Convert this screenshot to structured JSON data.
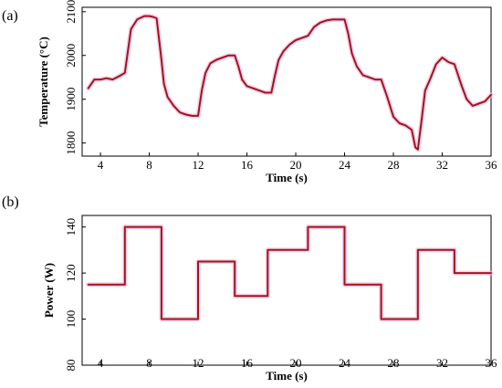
{
  "chart_data": [
    {
      "type": "line",
      "panel_label": "(a)",
      "xlabel": "Time (s)",
      "ylabel": "Temperature (°C)",
      "xlim": [
        2.5,
        36
      ],
      "ylim": [
        1770,
        2110
      ],
      "xticks": [
        4,
        8,
        12,
        16,
        20,
        24,
        28,
        32,
        36
      ],
      "yticks": [
        1800,
        1900,
        2000,
        2100
      ],
      "grid": false,
      "line_color": "#a0141e",
      "series": [
        {
          "x": [
            3.0,
            3.5,
            4.0,
            4.5,
            5.0,
            5.5,
            6.0,
            6.5,
            7.0,
            7.2,
            7.6,
            8.0,
            8.3,
            8.6,
            9.0,
            9.2,
            9.5,
            10.0,
            10.5,
            11.0,
            11.5,
            12.0,
            12.3,
            12.6,
            13.0,
            13.5,
            14.0,
            14.5,
            15.0,
            15.3,
            15.6,
            16.0,
            16.5,
            17.0,
            17.5,
            18.0,
            18.3,
            18.6,
            19.0,
            19.5,
            20.0,
            20.5,
            21.0,
            21.5,
            22.0,
            22.5,
            23.0,
            23.5,
            24.0,
            24.3,
            24.6,
            25.0,
            25.5,
            26.0,
            26.5,
            27.0,
            27.5,
            28.0,
            28.5,
            29.0,
            29.5,
            29.8,
            30.0,
            30.3,
            30.6,
            31.0,
            31.5,
            32.0,
            32.5,
            33.0,
            33.3,
            33.6,
            34.0,
            34.5,
            35.0,
            35.5,
            36.0
          ],
          "y": [
            1925,
            1945,
            1945,
            1948,
            1945,
            1952,
            1960,
            2060,
            2082,
            2085,
            2090,
            2090,
            2088,
            2085,
            1990,
            1935,
            1905,
            1885,
            1870,
            1865,
            1862,
            1862,
            1920,
            1960,
            1982,
            1990,
            1995,
            2000,
            2000,
            1975,
            1945,
            1930,
            1925,
            1920,
            1915,
            1915,
            1955,
            1990,
            2010,
            2025,
            2035,
            2040,
            2045,
            2065,
            2075,
            2080,
            2082,
            2082,
            2082,
            2050,
            2005,
            1975,
            1955,
            1950,
            1945,
            1945,
            1905,
            1860,
            1845,
            1840,
            1830,
            1790,
            1785,
            1850,
            1920,
            1945,
            1980,
            1995,
            1985,
            1980,
            1955,
            1930,
            1900,
            1885,
            1890,
            1895,
            1910
          ]
        }
      ]
    },
    {
      "type": "line",
      "panel_label": "(b)",
      "xlabel": "Time (s)",
      "ylabel": "Power (W)",
      "xlim": [
        2.5,
        36
      ],
      "ylim": [
        80,
        145
      ],
      "xticks": [
        4,
        8,
        12,
        16,
        20,
        24,
        28,
        32,
        36
      ],
      "yticks": [
        80,
        100,
        120,
        140
      ],
      "grid": false,
      "line_color": "#a0141e",
      "series": [
        {
          "x": [
            3,
            6,
            6,
            9,
            9,
            12,
            12,
            15,
            15,
            17.7,
            17.7,
            21,
            21,
            24,
            24,
            27,
            27,
            30,
            30,
            33,
            33,
            36
          ],
          "y": [
            115,
            115,
            140,
            140,
            100,
            100,
            125,
            125,
            110,
            110,
            130,
            130,
            140,
            140,
            115,
            115,
            100,
            100,
            130,
            130,
            120,
            120
          ]
        }
      ]
    }
  ]
}
